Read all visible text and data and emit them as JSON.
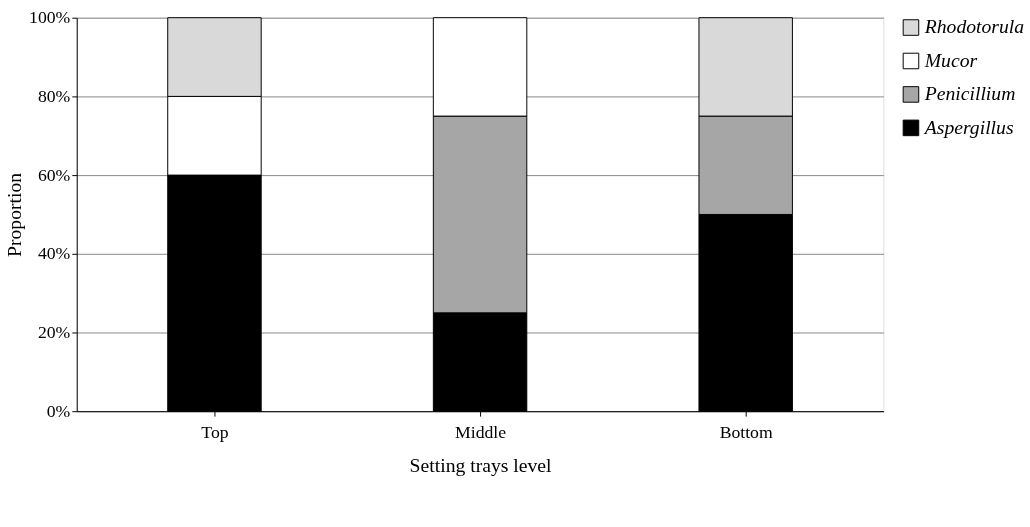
{
  "chart_data": {
    "type": "bar",
    "stacked": true,
    "xlabel": "Setting trays level",
    "ylabel": "Proportion",
    "categories": [
      "Top",
      "Middle",
      "Bottom"
    ],
    "series": [
      {
        "name": "Aspergillus",
        "color": "#000000",
        "values": [
          60,
          25,
          50
        ]
      },
      {
        "name": "Penicillium",
        "color": "#a6a6a6",
        "values": [
          0,
          50,
          25
        ]
      },
      {
        "name": "Mucor",
        "color": "#ffffff",
        "values": [
          20,
          25,
          0
        ]
      },
      {
        "name": "Rhodotorula",
        "color": "#d9d9d9",
        "values": [
          20,
          0,
          25
        ]
      }
    ],
    "ylim": [
      0,
      100
    ],
    "yticks": [
      {
        "value": 0,
        "label": "0%"
      },
      {
        "value": 20,
        "label": "20%"
      },
      {
        "value": 40,
        "label": "40%"
      },
      {
        "value": 60,
        "label": "60%"
      },
      {
        "value": 80,
        "label": "80%"
      },
      {
        "value": 100,
        "label": "100%"
      }
    ],
    "grid": "y",
    "legend": "right"
  }
}
